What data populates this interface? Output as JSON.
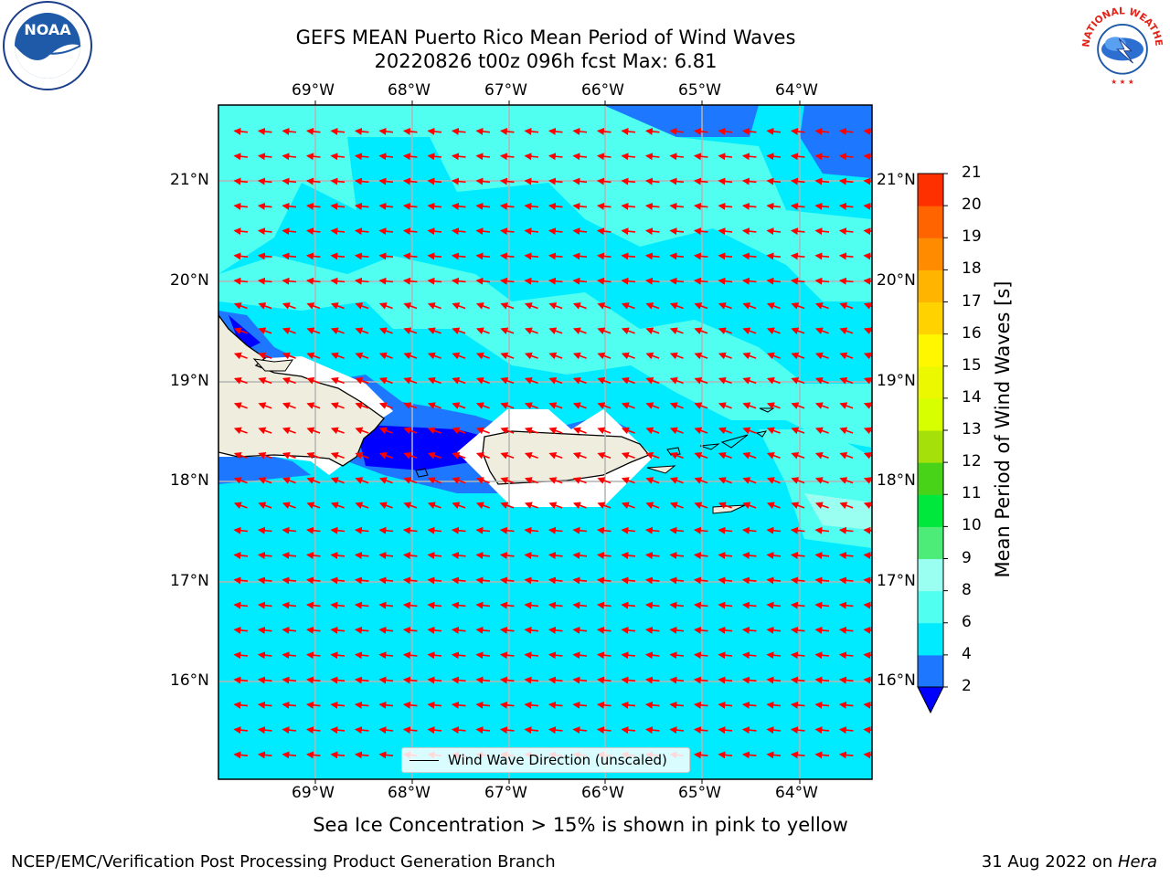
{
  "title": {
    "line1": "GEFS MEAN Puerto Rico Mean Period of Wind Waves",
    "line2": "20220826 t00z 096h fcst   Max: 6.81"
  },
  "logos": {
    "noaa": {
      "text": "NOAA",
      "icon": "noaa-logo-icon"
    },
    "nws": {
      "text": "NATIONAL WEATHER SERVICE",
      "icon": "nws-logo-icon"
    }
  },
  "map": {
    "lon_labels": [
      "69°W",
      "68°W",
      "67°W",
      "66°W",
      "65°W",
      "64°W"
    ],
    "lat_labels": [
      "21°N",
      "20°N",
      "19°N",
      "18°N",
      "17°N",
      "16°N"
    ],
    "legend_label": "Wind Wave Direction (unscaled)",
    "arrow_color": "#ff0000",
    "land_color": "#efedde"
  },
  "colorbar": {
    "label": "Mean Period of Wind Waves [s]",
    "ticks": [
      "2",
      "4",
      "6",
      "8",
      "9",
      "10",
      "11",
      "12",
      "13",
      "14",
      "15",
      "16",
      "17",
      "18",
      "19",
      "20",
      "21"
    ],
    "colors": [
      "#1e78ff",
      "#00ebff",
      "#50fff0",
      "#9afff0",
      "#4deb78",
      "#00e83c",
      "#48d319",
      "#a5e00a",
      "#d8ff00",
      "#ecf800",
      "#fff700",
      "#ffd200",
      "#ffb400",
      "#ff8c00",
      "#ff6400",
      "#ff3000"
    ],
    "under_color": "#0000ff"
  },
  "sea_ice_note": "Sea Ice Concentration > 15% is shown in pink to yellow",
  "footer": {
    "left": "NCEP/EMC/Verification Post Processing Product Generation Branch",
    "right_prefix": "31 Aug 2022 on ",
    "right_italic": "Hera"
  }
}
